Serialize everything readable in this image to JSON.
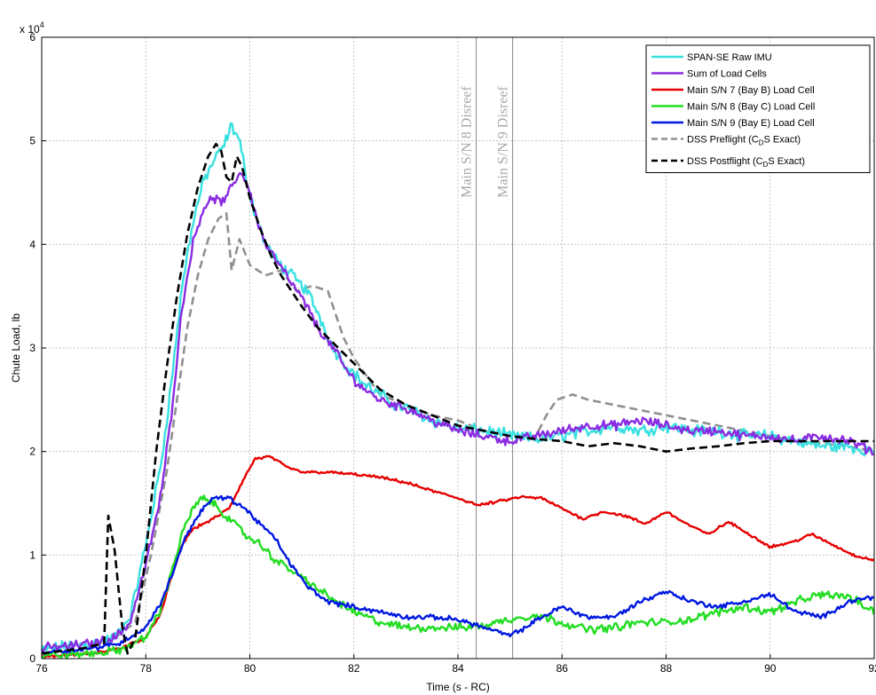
{
  "chart_data": {
    "type": "line",
    "title": "",
    "xlabel": "Time (s - RC)",
    "ylabel": "Chute Load, lb",
    "y_multiplier_label": "x 10",
    "y_multiplier_exp": "4",
    "xlim": [
      76,
      92
    ],
    "ylim": [
      0,
      6
    ],
    "xticks": [
      "76",
      "78",
      "80",
      "82",
      "84",
      "86",
      "88",
      "90",
      "92"
    ],
    "yticks": [
      "0",
      "1",
      "2",
      "3",
      "4",
      "5",
      "6"
    ],
    "grid": true,
    "legend_position": "top-right",
    "event_lines": [
      {
        "x": 84.35,
        "label": "Main S/N 8 Disreef"
      },
      {
        "x": 85.05,
        "label": "Main S/N 9 Disreef"
      }
    ],
    "series": [
      {
        "name": "SPAN-SE Raw IMU",
        "color": "#38e0e0",
        "dash": "solid",
        "noise": 0.09,
        "x": [
          76.0,
          76.5,
          77.0,
          77.4,
          77.7,
          78.0,
          78.3,
          78.5,
          78.7,
          78.9,
          79.1,
          79.3,
          79.5,
          79.65,
          79.8,
          79.95,
          80.1,
          80.3,
          80.5,
          80.7,
          80.9,
          81.1,
          81.3,
          81.6,
          81.9,
          82.2,
          82.5,
          82.8,
          83.1,
          83.5,
          84.0,
          84.5,
          85.0,
          85.5,
          86.0,
          86.5,
          87.0,
          87.5,
          88.0,
          88.5,
          89.0,
          89.5,
          90.0,
          90.5,
          91.0,
          91.5,
          92.0
        ],
        "y": [
          0.08,
          0.12,
          0.15,
          0.2,
          0.4,
          1.1,
          1.9,
          2.7,
          3.6,
          4.2,
          4.6,
          4.8,
          4.95,
          5.15,
          5.0,
          4.6,
          4.3,
          4.0,
          3.85,
          3.75,
          3.65,
          3.55,
          3.35,
          3.0,
          2.8,
          2.65,
          2.55,
          2.45,
          2.4,
          2.3,
          2.22,
          2.2,
          2.15,
          2.12,
          2.15,
          2.2,
          2.25,
          2.2,
          2.25,
          2.2,
          2.2,
          2.15,
          2.15,
          2.1,
          2.05,
          2.05,
          2.0
        ]
      },
      {
        "name": "Sum of Load Cells",
        "color": "#8a2be2",
        "dash": "solid",
        "noise": 0.07,
        "x": [
          76.0,
          76.5,
          77.0,
          77.4,
          77.7,
          78.0,
          78.3,
          78.5,
          78.7,
          78.9,
          79.1,
          79.3,
          79.5,
          79.65,
          79.8,
          79.95,
          80.1,
          80.3,
          80.5,
          80.7,
          80.9,
          81.1,
          81.3,
          81.6,
          81.9,
          82.2,
          82.5,
          82.8,
          83.1,
          83.5,
          84.0,
          84.5,
          85.0,
          85.5,
          86.0,
          86.5,
          87.0,
          87.5,
          88.0,
          88.5,
          89.0,
          89.5,
          90.0,
          90.5,
          91.0,
          91.5,
          92.0
        ],
        "y": [
          0.1,
          0.12,
          0.15,
          0.2,
          0.35,
          0.9,
          1.6,
          2.4,
          3.4,
          4.0,
          4.35,
          4.45,
          4.4,
          4.55,
          4.7,
          4.6,
          4.3,
          4.0,
          3.85,
          3.7,
          3.55,
          3.4,
          3.2,
          3.0,
          2.75,
          2.6,
          2.5,
          2.45,
          2.4,
          2.3,
          2.2,
          2.15,
          2.1,
          2.15,
          2.2,
          2.25,
          2.25,
          2.3,
          2.25,
          2.2,
          2.2,
          2.15,
          2.15,
          2.1,
          2.15,
          2.1,
          2.0
        ]
      },
      {
        "name": "Main S/N 7 (Bay B) Load Cell",
        "color": "#e60000",
        "dash": "solid",
        "noise": 0.02,
        "x": [
          76.0,
          77.0,
          77.5,
          78.0,
          78.3,
          78.5,
          78.7,
          78.9,
          79.1,
          79.3,
          79.6,
          79.9,
          80.1,
          80.4,
          80.7,
          81.0,
          81.5,
          82.0,
          82.5,
          83.0,
          83.5,
          84.0,
          84.4,
          84.8,
          85.2,
          85.6,
          86.0,
          86.4,
          86.8,
          87.2,
          87.6,
          88.0,
          88.4,
          88.8,
          89.2,
          89.6,
          90.0,
          90.4,
          90.8,
          91.2,
          91.6,
          92.0
        ],
        "y": [
          0.02,
          0.05,
          0.1,
          0.2,
          0.45,
          0.8,
          1.1,
          1.25,
          1.3,
          1.35,
          1.45,
          1.75,
          1.93,
          1.95,
          1.85,
          1.8,
          1.8,
          1.78,
          1.75,
          1.7,
          1.62,
          1.55,
          1.48,
          1.52,
          1.56,
          1.55,
          1.45,
          1.35,
          1.42,
          1.38,
          1.3,
          1.42,
          1.3,
          1.2,
          1.32,
          1.2,
          1.08,
          1.12,
          1.2,
          1.1,
          1.0,
          0.95
        ]
      },
      {
        "name": "Main S/N 8 (Bay C) Load Cell",
        "color": "#22dd22",
        "dash": "solid",
        "noise": 0.06,
        "x": [
          76.0,
          77.0,
          77.5,
          78.0,
          78.3,
          78.5,
          78.7,
          78.9,
          79.1,
          79.3,
          79.6,
          79.9,
          80.2,
          80.5,
          80.8,
          81.1,
          81.5,
          82.0,
          82.5,
          83.0,
          83.5,
          84.0,
          84.5,
          85.0,
          85.5,
          86.0,
          86.5,
          87.0,
          87.5,
          88.0,
          88.5,
          89.0,
          89.5,
          90.0,
          90.5,
          91.0,
          91.5,
          92.0
        ],
        "y": [
          0.03,
          0.05,
          0.08,
          0.2,
          0.5,
          0.85,
          1.2,
          1.45,
          1.55,
          1.5,
          1.35,
          1.2,
          1.1,
          0.95,
          0.85,
          0.75,
          0.6,
          0.45,
          0.35,
          0.3,
          0.3,
          0.3,
          0.32,
          0.38,
          0.42,
          0.35,
          0.28,
          0.3,
          0.35,
          0.35,
          0.38,
          0.45,
          0.5,
          0.45,
          0.55,
          0.62,
          0.6,
          0.45
        ]
      },
      {
        "name": "Main S/N 9 (Bay E) Load Cell",
        "color": "#0018e0",
        "dash": "solid",
        "noise": 0.035,
        "x": [
          76.0,
          77.0,
          77.5,
          78.0,
          78.3,
          78.5,
          78.7,
          78.9,
          79.1,
          79.3,
          79.6,
          79.9,
          80.2,
          80.5,
          80.8,
          81.1,
          81.5,
          82.0,
          82.5,
          83.0,
          83.5,
          84.0,
          84.5,
          85.0,
          85.3,
          85.6,
          86.0,
          86.5,
          87.0,
          87.5,
          88.0,
          88.5,
          89.0,
          89.5,
          90.0,
          90.5,
          91.0,
          91.5,
          92.0
        ],
        "y": [
          0.06,
          0.1,
          0.15,
          0.3,
          0.55,
          0.8,
          1.1,
          1.3,
          1.45,
          1.55,
          1.55,
          1.45,
          1.3,
          1.15,
          0.9,
          0.7,
          0.55,
          0.5,
          0.45,
          0.4,
          0.4,
          0.38,
          0.3,
          0.22,
          0.3,
          0.4,
          0.5,
          0.4,
          0.4,
          0.55,
          0.65,
          0.55,
          0.5,
          0.55,
          0.62,
          0.45,
          0.4,
          0.55,
          0.6
        ]
      },
      {
        "name": "DSS Preflight (C_D S Exact)",
        "color": "#909090",
        "dash": "dashed",
        "noise": 0,
        "x": [
          76.0,
          77.0,
          77.4,
          77.8,
          78.1,
          78.4,
          78.6,
          78.8,
          79.0,
          79.2,
          79.4,
          79.55,
          79.65,
          79.8,
          80.0,
          80.3,
          80.6,
          80.9,
          81.2,
          81.5,
          81.8,
          82.0,
          82.5,
          83.0,
          83.5,
          84.0,
          84.5,
          85.0,
          85.5,
          85.7,
          85.9,
          86.2,
          86.5,
          87.0,
          87.5,
          88.0,
          88.5,
          89.0,
          89.5,
          90.0,
          90.5,
          91.0,
          91.5,
          92.0
        ],
        "y": [
          0.1,
          0.15,
          0.2,
          0.35,
          1.0,
          1.8,
          2.5,
          3.2,
          3.7,
          4.05,
          4.25,
          4.3,
          3.75,
          4.05,
          3.8,
          3.7,
          3.75,
          3.55,
          3.6,
          3.55,
          3.1,
          2.9,
          2.55,
          2.45,
          2.35,
          2.3,
          2.2,
          2.15,
          2.15,
          2.35,
          2.5,
          2.55,
          2.5,
          2.45,
          2.4,
          2.35,
          2.3,
          2.25,
          2.2,
          2.15,
          2.1,
          2.08,
          2.05,
          2.0
        ]
      },
      {
        "name": "DSS Postflight (C_D S Exact)",
        "color": "#000000",
        "dash": "dashed",
        "noise": 0,
        "x": [
          76.0,
          76.8,
          77.2,
          77.28,
          77.4,
          77.55,
          77.65,
          77.8,
          78.0,
          78.2,
          78.4,
          78.6,
          78.8,
          79.0,
          79.2,
          79.35,
          79.45,
          79.55,
          79.65,
          79.75,
          79.85,
          80.0,
          80.2,
          80.4,
          80.6,
          80.8,
          81.0,
          81.3,
          81.6,
          82.0,
          82.5,
          83.0,
          83.5,
          84.0,
          84.5,
          85.0,
          85.5,
          86.0,
          86.5,
          87.0,
          87.5,
          88.0,
          88.5,
          89.0,
          89.5,
          90.0,
          90.5,
          91.0,
          91.5,
          92.0
        ],
        "y": [
          0.05,
          0.1,
          0.15,
          1.38,
          1.05,
          0.3,
          0.05,
          0.2,
          1.0,
          2.0,
          2.8,
          3.5,
          4.1,
          4.55,
          4.85,
          4.97,
          4.9,
          4.65,
          4.6,
          4.85,
          4.75,
          4.45,
          4.15,
          3.9,
          3.7,
          3.55,
          3.4,
          3.2,
          3.05,
          2.85,
          2.6,
          2.45,
          2.35,
          2.25,
          2.2,
          2.15,
          2.12,
          2.1,
          2.05,
          2.08,
          2.05,
          2.0,
          2.03,
          2.05,
          2.08,
          2.1,
          2.1,
          2.1,
          2.1,
          2.1
        ]
      }
    ]
  }
}
